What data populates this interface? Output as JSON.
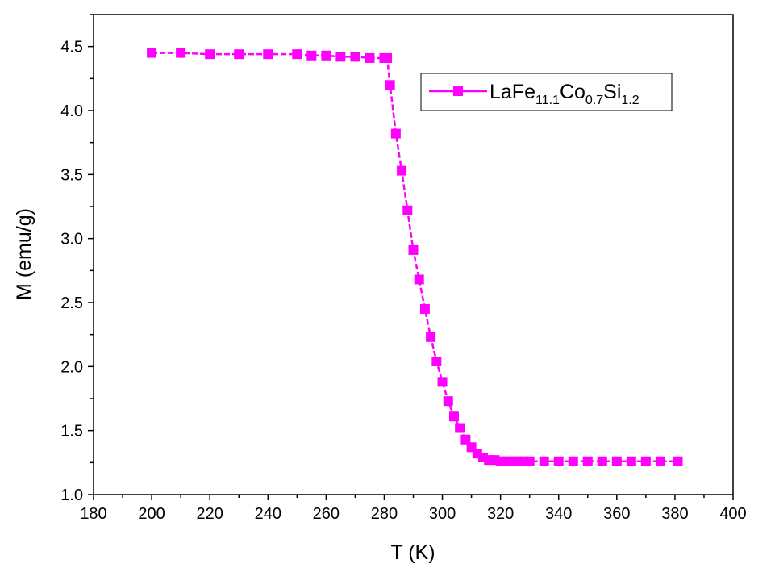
{
  "chart_data": {
    "type": "line",
    "xlabel": "T (K)",
    "ylabel": "M (emu/g)",
    "xlim": [
      180,
      400
    ],
    "ylim": [
      1.0,
      4.75
    ],
    "xticks": [
      180,
      200,
      220,
      240,
      260,
      280,
      300,
      320,
      340,
      360,
      380,
      400
    ],
    "yticks": [
      1.0,
      1.5,
      2.0,
      2.5,
      3.0,
      3.5,
      4.0,
      4.5
    ],
    "xtick_labels": [
      "180",
      "200",
      "220",
      "240",
      "260",
      "280",
      "300",
      "320",
      "340",
      "360",
      "380",
      "400"
    ],
    "ytick_labels": [
      "1.0",
      "1.5",
      "2.0",
      "2.5",
      "3.0",
      "3.5",
      "4.0",
      "4.5"
    ],
    "grid": false,
    "legend_position": "top-right",
    "series": [
      {
        "name": "LaFe11.1Co0.7Si1.2",
        "legend_parts": {
          "base": "LaFe",
          "sub1": "11.1",
          "el2": "Co",
          "sub2": "0.7",
          "el3": "Si",
          "sub3": "1.2"
        },
        "color": "#ff00ff",
        "marker": "square",
        "x": [
          200,
          210,
          220,
          230,
          240,
          250,
          255,
          260,
          265,
          270,
          275,
          280,
          281,
          282,
          284,
          286,
          288,
          290,
          292,
          294,
          296,
          298,
          300,
          302,
          304,
          306,
          308,
          310,
          312,
          314,
          316,
          318,
          320,
          322,
          324,
          326,
          328,
          330,
          335,
          340,
          345,
          350,
          355,
          360,
          365,
          370,
          375,
          381
        ],
        "y": [
          4.45,
          4.45,
          4.44,
          4.44,
          4.44,
          4.44,
          4.43,
          4.43,
          4.42,
          4.42,
          4.41,
          4.41,
          4.41,
          4.2,
          3.82,
          3.53,
          3.22,
          2.91,
          2.68,
          2.45,
          2.23,
          2.04,
          1.88,
          1.73,
          1.61,
          1.52,
          1.43,
          1.37,
          1.32,
          1.29,
          1.27,
          1.27,
          1.26,
          1.26,
          1.26,
          1.26,
          1.26,
          1.26,
          1.26,
          1.26,
          1.26,
          1.26,
          1.26,
          1.26,
          1.26,
          1.26,
          1.26,
          1.26
        ]
      }
    ]
  }
}
